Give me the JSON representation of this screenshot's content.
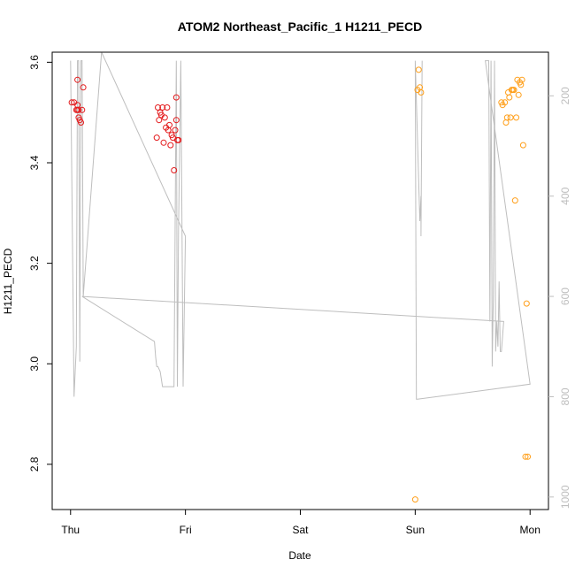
{
  "chart_data": {
    "type": "scatter",
    "title": "ATOM2 Northeast_Pacific_1 H1211_PECD",
    "xlabel": "Date",
    "ylabel": "H1211_PECD",
    "x_tick_labels": [
      "Thu",
      "Fri",
      "Sat",
      "Sun",
      "Mon"
    ],
    "xlim_days": [
      -0.16,
      4.16
    ],
    "ylim": [
      2.71,
      3.62
    ],
    "y_ticks": [
      2.8,
      3.0,
      3.2,
      3.4,
      3.6
    ],
    "y2_ticks": [
      200,
      400,
      600,
      800,
      1000
    ],
    "y2lim": [
      1025,
      113
    ],
    "colors": {
      "series_red": "#e31a1c",
      "series_orange": "#ff9f1a",
      "altitude_line": "#bebebe",
      "axis": "#000000",
      "right_axis": "#bebebe"
    },
    "series": [
      {
        "color_key": "series_red",
        "points": [
          [
            0.01,
            3.52
          ],
          [
            0.03,
            3.52
          ],
          [
            0.05,
            3.505
          ],
          [
            0.06,
            3.515
          ],
          [
            0.06,
            3.505
          ],
          [
            0.06,
            3.565
          ],
          [
            0.07,
            3.49
          ],
          [
            0.07,
            3.505
          ],
          [
            0.08,
            3.485
          ],
          [
            0.09,
            3.48
          ],
          [
            0.1,
            3.505
          ],
          [
            0.11,
            3.55
          ],
          [
            0.75,
            3.45
          ],
          [
            0.76,
            3.51
          ],
          [
            0.77,
            3.485
          ],
          [
            0.78,
            3.5
          ],
          [
            0.79,
            3.495
          ],
          [
            0.8,
            3.51
          ],
          [
            0.81,
            3.44
          ],
          [
            0.82,
            3.49
          ],
          [
            0.83,
            3.47
          ],
          [
            0.84,
            3.51
          ],
          [
            0.85,
            3.465
          ],
          [
            0.86,
            3.475
          ],
          [
            0.87,
            3.435
          ],
          [
            0.88,
            3.455
          ],
          [
            0.89,
            3.45
          ],
          [
            0.9,
            3.385
          ],
          [
            0.91,
            3.465
          ],
          [
            0.92,
            3.485
          ],
          [
            0.92,
            3.53
          ],
          [
            0.93,
            3.445
          ],
          [
            0.94,
            3.445
          ]
        ]
      },
      {
        "color_key": "series_orange",
        "points": [
          [
            3.0,
            2.73
          ],
          [
            3.02,
            3.545
          ],
          [
            3.03,
            3.585
          ],
          [
            3.04,
            3.55
          ],
          [
            3.05,
            3.54
          ],
          [
            3.75,
            3.52
          ],
          [
            3.76,
            3.515
          ],
          [
            3.78,
            3.52
          ],
          [
            3.79,
            3.48
          ],
          [
            3.8,
            3.49
          ],
          [
            3.81,
            3.54
          ],
          [
            3.82,
            3.53
          ],
          [
            3.83,
            3.49
          ],
          [
            3.84,
            3.545
          ],
          [
            3.85,
            3.545
          ],
          [
            3.86,
            3.545
          ],
          [
            3.87,
            3.325
          ],
          [
            3.88,
            3.49
          ],
          [
            3.89,
            3.565
          ],
          [
            3.9,
            3.535
          ],
          [
            3.91,
            3.56
          ],
          [
            3.92,
            3.555
          ],
          [
            3.93,
            3.565
          ],
          [
            3.94,
            3.435
          ],
          [
            3.96,
            2.815
          ],
          [
            3.98,
            2.815
          ],
          [
            3.97,
            3.12
          ]
        ]
      }
    ],
    "altitude_line": {
      "axis": "right",
      "points": [
        [
          0.0,
          130
        ],
        [
          0.03,
          800
        ],
        [
          0.05,
          700
        ],
        [
          0.06,
          130
        ],
        [
          0.07,
          130
        ],
        [
          0.08,
          730
        ],
        [
          0.09,
          130
        ],
        [
          0.1,
          130
        ],
        [
          0.11,
          600
        ],
        [
          0.27,
          113
        ],
        [
          1.0,
          480
        ],
        [
          0.98,
          780
        ],
        [
          0.96,
          130
        ],
        [
          0.94,
          470
        ],
        [
          0.93,
          780
        ],
        [
          0.92,
          130
        ],
        [
          0.9,
          780
        ],
        [
          0.88,
          780
        ],
        [
          0.86,
          780
        ],
        [
          0.84,
          780
        ],
        [
          0.82,
          780
        ],
        [
          0.8,
          780
        ],
        [
          0.78,
          750
        ],
        [
          0.76,
          740
        ],
        [
          0.75,
          740
        ],
        [
          0.74,
          720
        ],
        [
          0.73,
          690
        ],
        [
          0.1,
          600
        ],
        [
          3.77,
          650
        ],
        [
          3.75,
          710
        ],
        [
          3.74,
          710
        ],
        [
          3.73,
          570
        ],
        [
          3.72,
          700
        ],
        [
          3.71,
          650
        ],
        [
          3.7,
          710
        ],
        [
          3.69,
          130
        ],
        [
          3.68,
          600
        ],
        [
          3.67,
          740
        ],
        [
          3.66,
          130
        ],
        [
          3.65,
          650
        ],
        [
          3.64,
          130
        ],
        [
          3.62,
          130
        ],
        [
          3.61,
          130
        ],
        [
          4.0,
          775
        ],
        [
          3.02,
          805
        ],
        [
          3.01,
          805
        ],
        [
          3.0,
          130
        ],
        [
          3.04,
          450
        ],
        [
          3.05,
          400
        ],
        [
          3.05,
          480
        ],
        [
          3.06,
          130
        ]
      ]
    }
  }
}
